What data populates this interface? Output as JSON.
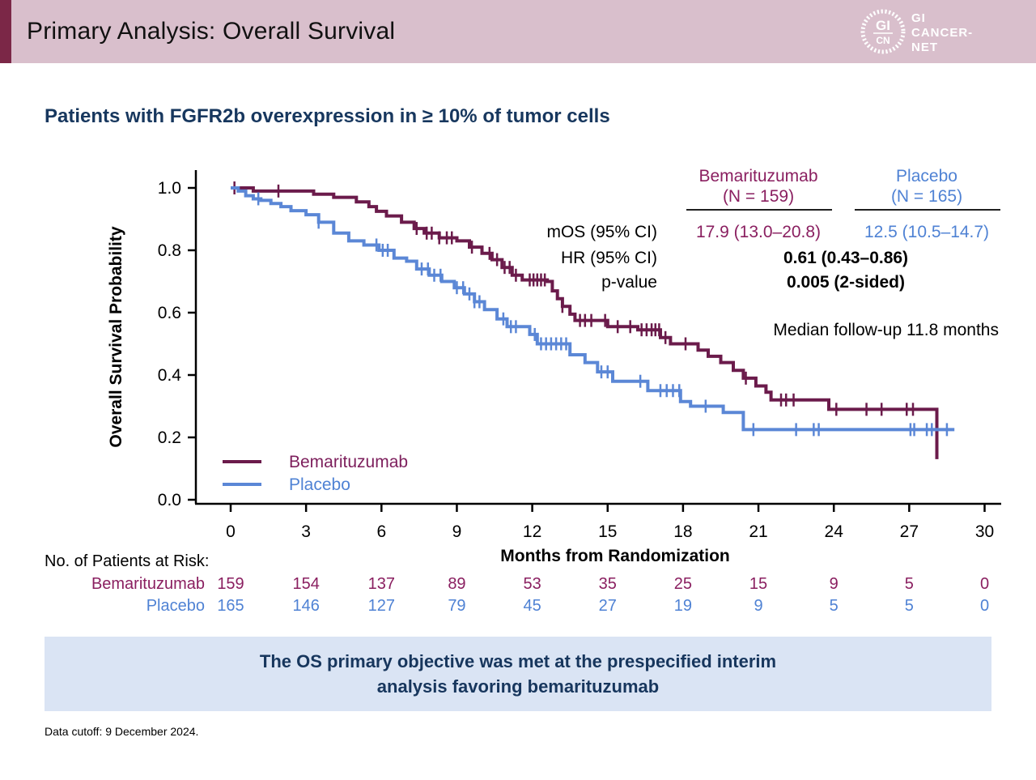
{
  "header": {
    "title": "Primary Analysis: Overall Survival",
    "logo": {
      "monogram_top": "GI",
      "monogram_bottom": "CN",
      "name_line1": "GI",
      "name_line2": "CANCER-",
      "name_line3": "NET"
    }
  },
  "subtitle": "Patients with FGFR2b overexpression in ≥ 10% of tumor cells",
  "colors": {
    "header_bg": "#d9bfcc",
    "header_accent": "#7b2747",
    "bema_curve": "#6b1b4b",
    "bema_text": "#8a1f60",
    "placebo_curve": "#5b87d6",
    "placebo_text": "#4f82d4",
    "navy_text": "#17375e",
    "callout_bg": "#dae4f4",
    "axis": "#000000"
  },
  "chart_data": {
    "type": "line",
    "subtype": "kaplan-meier-step",
    "title": "",
    "xlabel": "Months from Randomization",
    "ylabel": "Overall Survival Probability",
    "xlim": [
      0,
      30
    ],
    "ylim": [
      0.0,
      1.0
    ],
    "xticks": [
      0,
      3,
      6,
      9,
      12,
      15,
      18,
      21,
      24,
      27,
      30
    ],
    "yticks": [
      0.0,
      0.2,
      0.4,
      0.6,
      0.8,
      1.0
    ],
    "grid": false,
    "legend_position": "inside-lower-left",
    "series": [
      {
        "name": "Bemarituzumab",
        "color": "#6b1b4b",
        "steps": [
          [
            0,
            1.0
          ],
          [
            0.9,
            0.99
          ],
          [
            3.3,
            0.98
          ],
          [
            4.1,
            0.97
          ],
          [
            5.0,
            0.955
          ],
          [
            5.5,
            0.94
          ],
          [
            5.8,
            0.925
          ],
          [
            6.2,
            0.91
          ],
          [
            6.8,
            0.89
          ],
          [
            7.3,
            0.87
          ],
          [
            7.7,
            0.855
          ],
          [
            8.3,
            0.84
          ],
          [
            9.0,
            0.83
          ],
          [
            9.5,
            0.81
          ],
          [
            10.0,
            0.79
          ],
          [
            10.4,
            0.77
          ],
          [
            10.8,
            0.745
          ],
          [
            11.2,
            0.72
          ],
          [
            11.6,
            0.705
          ],
          [
            12.6,
            0.7
          ],
          [
            12.8,
            0.67
          ],
          [
            13.0,
            0.645
          ],
          [
            13.2,
            0.62
          ],
          [
            13.5,
            0.595
          ],
          [
            13.7,
            0.575
          ],
          [
            15.0,
            0.555
          ],
          [
            16.2,
            0.545
          ],
          [
            17.1,
            0.52
          ],
          [
            17.5,
            0.5
          ],
          [
            18.6,
            0.48
          ],
          [
            19.0,
            0.46
          ],
          [
            19.5,
            0.44
          ],
          [
            20.0,
            0.415
          ],
          [
            20.4,
            0.39
          ],
          [
            20.9,
            0.365
          ],
          [
            21.3,
            0.345
          ],
          [
            21.5,
            0.32
          ],
          [
            23.8,
            0.29
          ],
          [
            28.1,
            0.13
          ]
        ],
        "censor_months": [
          0.15,
          1.9,
          7.4,
          7.8,
          8.0,
          8.3,
          8.6,
          8.8,
          9.6,
          10.3,
          10.6,
          10.9,
          11.1,
          11.35,
          11.9,
          12.05,
          12.2,
          12.35,
          12.5,
          13.2,
          13.9,
          14.1,
          14.35,
          14.9,
          15.4,
          15.9,
          16.35,
          16.55,
          16.75,
          16.9,
          17.05,
          17.3,
          18.1,
          20.5,
          21.9,
          22.1,
          22.4,
          24.1,
          25.3,
          25.9,
          26.9,
          27.15
        ]
      },
      {
        "name": "Placebo",
        "color": "#5b87d6",
        "steps": [
          [
            0,
            1.0
          ],
          [
            0.3,
            0.99
          ],
          [
            0.6,
            0.975
          ],
          [
            0.9,
            0.965
          ],
          [
            1.2,
            0.96
          ],
          [
            1.6,
            0.95
          ],
          [
            2.0,
            0.94
          ],
          [
            2.4,
            0.927
          ],
          [
            3.0,
            0.914
          ],
          [
            3.5,
            0.89
          ],
          [
            4.1,
            0.855
          ],
          [
            4.7,
            0.83
          ],
          [
            5.3,
            0.817
          ],
          [
            5.9,
            0.8
          ],
          [
            6.5,
            0.775
          ],
          [
            7.0,
            0.765
          ],
          [
            7.4,
            0.74
          ],
          [
            7.9,
            0.72
          ],
          [
            8.4,
            0.7
          ],
          [
            8.9,
            0.68
          ],
          [
            9.3,
            0.66
          ],
          [
            9.7,
            0.635
          ],
          [
            10.1,
            0.61
          ],
          [
            10.6,
            0.58
          ],
          [
            11.0,
            0.555
          ],
          [
            11.9,
            0.53
          ],
          [
            12.2,
            0.5
          ],
          [
            13.5,
            0.465
          ],
          [
            14.1,
            0.44
          ],
          [
            14.6,
            0.41
          ],
          [
            15.2,
            0.38
          ],
          [
            16.6,
            0.35
          ],
          [
            17.9,
            0.315
          ],
          [
            18.3,
            0.3
          ],
          [
            19.6,
            0.28
          ],
          [
            20.4,
            0.225
          ],
          [
            28.8,
            0.225
          ]
        ],
        "censor_months": [
          1.1,
          3.5,
          5.8,
          6.05,
          6.25,
          7.6,
          7.85,
          8.1,
          8.35,
          9.0,
          9.25,
          9.5,
          9.7,
          9.9,
          10.85,
          11.15,
          11.35,
          12.1,
          12.35,
          12.55,
          12.75,
          12.95,
          13.15,
          13.35,
          14.75,
          15.0,
          16.3,
          17.1,
          17.35,
          17.6,
          17.85,
          18.9,
          20.8,
          22.5,
          23.2,
          23.4,
          27.05,
          27.2,
          27.7,
          27.9,
          28.5
        ]
      }
    ],
    "legend": [
      "Bemarituzumab",
      "Placebo"
    ]
  },
  "stats": {
    "col_bema": {
      "name": "Bemarituzumab",
      "n": "(N = 159)",
      "mos": "17.9 (13.0–20.8)"
    },
    "col_placebo": {
      "name": "Placebo",
      "n": "(N = 165)",
      "mos": "12.5 (10.5–14.7)"
    },
    "mos_label": "mOS (95% CI)",
    "hr_label": "HR (95% CI)",
    "hr_value": "0.61 (0.43–0.86)",
    "p_label": "p-value",
    "p_value": "0.005 (2-sided)",
    "median_followup": "Median follow-up 11.8 months"
  },
  "risk_table": {
    "header": "No. of Patients at Risk:",
    "rows": [
      {
        "name": "Bemarituzumab",
        "color": "#8a1f60",
        "values": [
          "159",
          "154",
          "137",
          "89",
          "53",
          "35",
          "25",
          "15",
          "9",
          "5",
          "0"
        ]
      },
      {
        "name": "Placebo",
        "color": "#4f82d4",
        "values": [
          "165",
          "146",
          "127",
          "79",
          "45",
          "27",
          "19",
          "9",
          "5",
          "5",
          "0"
        ]
      }
    ]
  },
  "callout": {
    "line1": "The OS primary objective was met at the prespecified interim",
    "line2": "analysis favoring bemarituzumab"
  },
  "footnote": "Data cutoff: 9 December 2024."
}
